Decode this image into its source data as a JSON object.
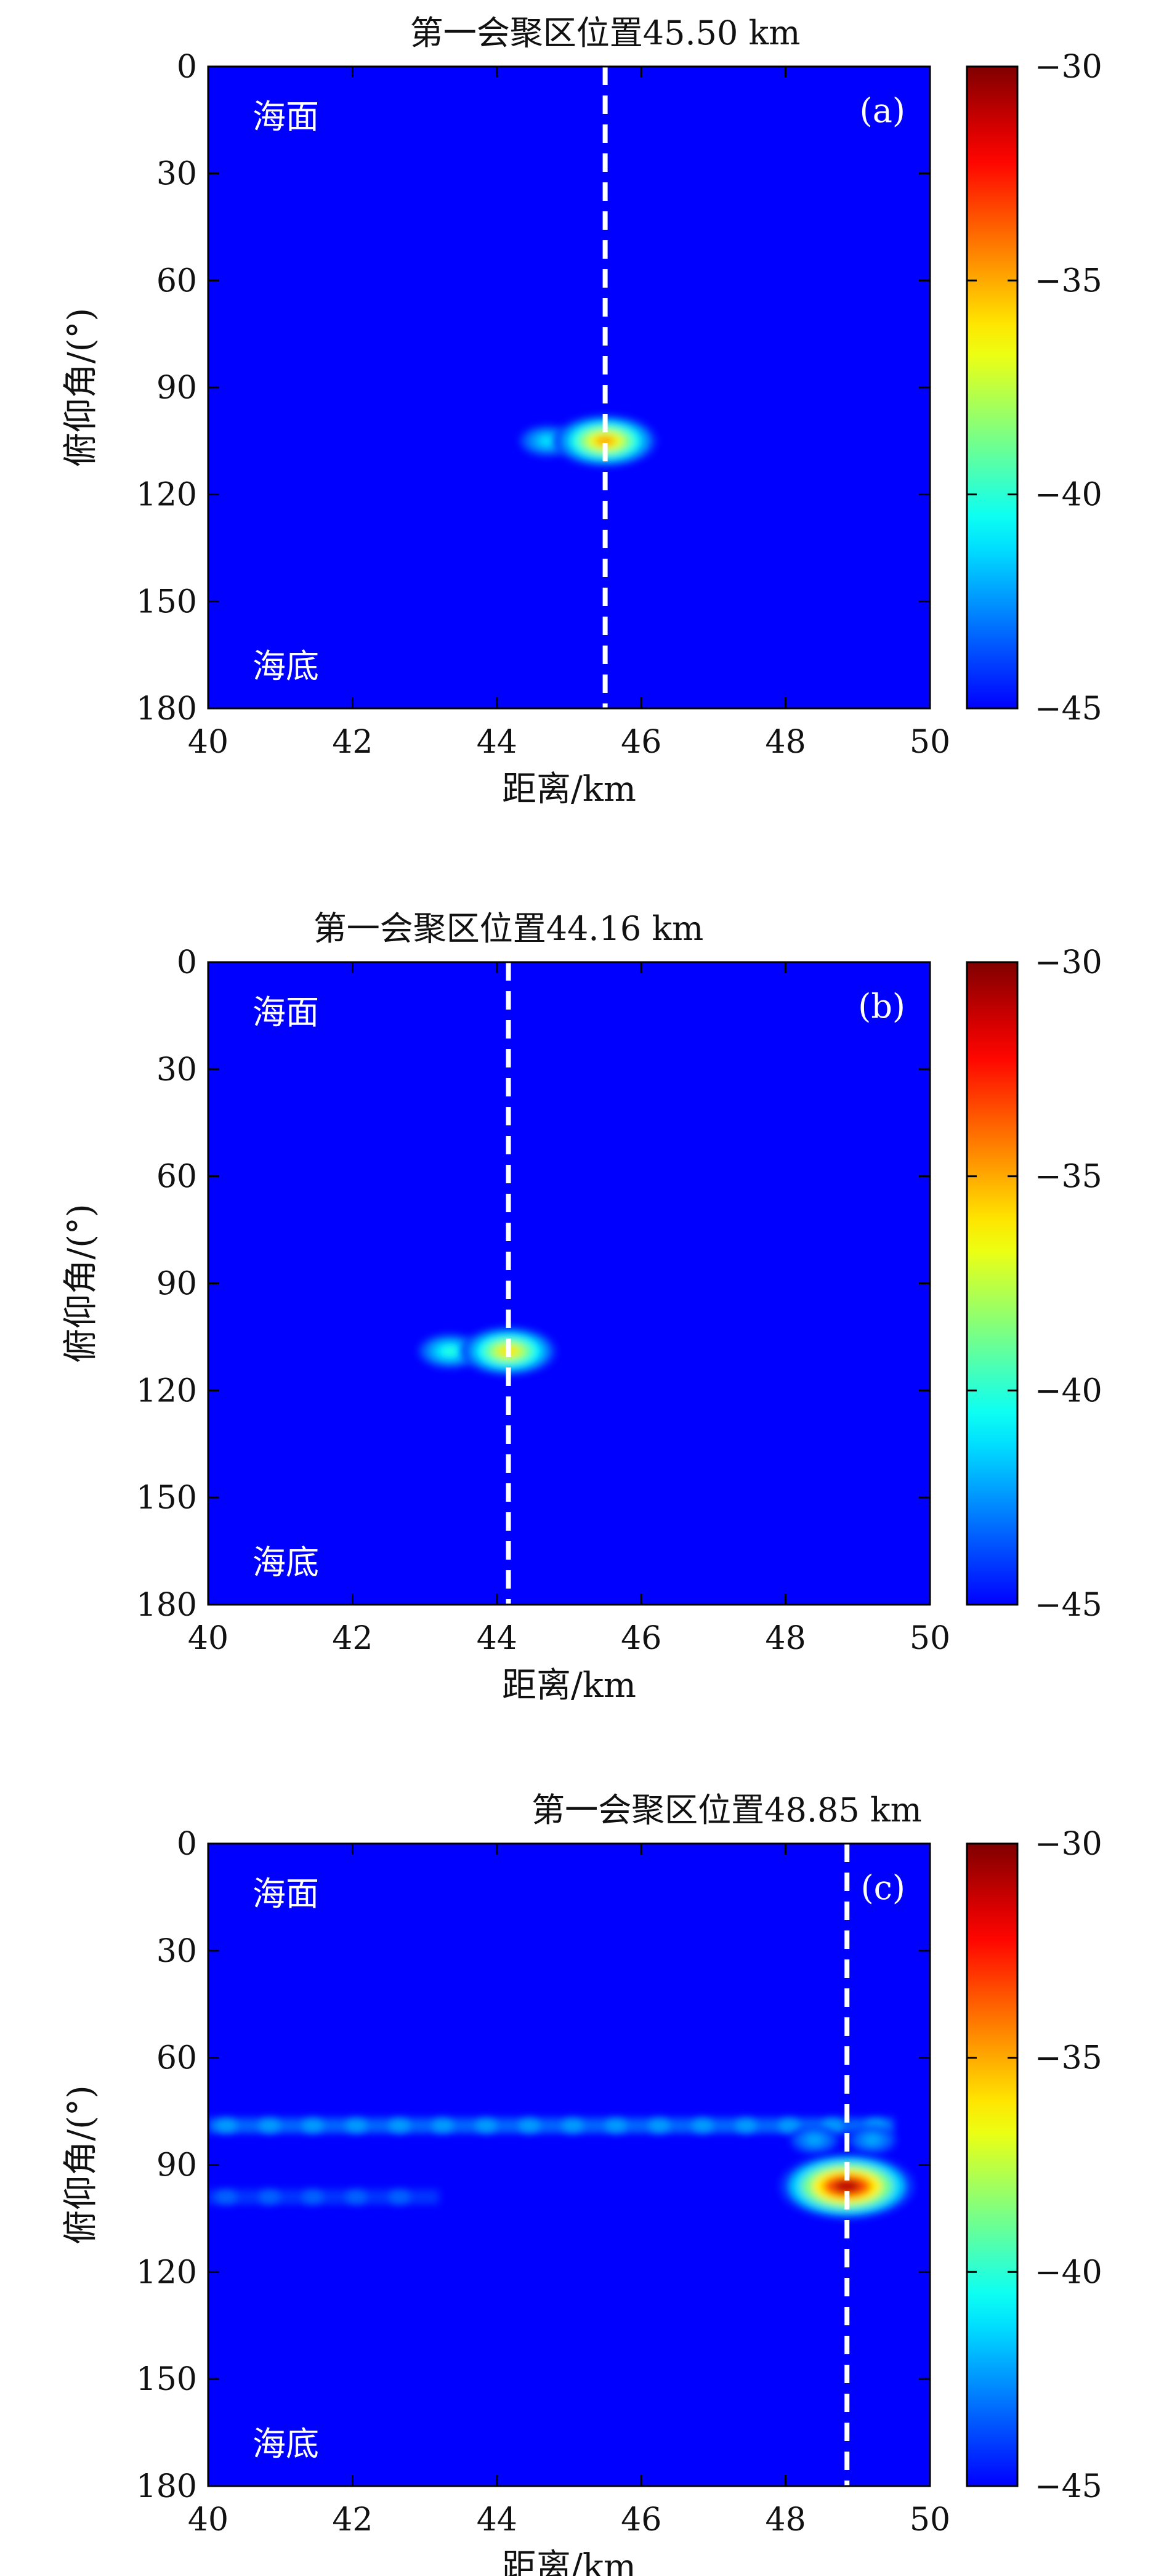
{
  "chart_data": [
    {
      "type": "heatmap",
      "panel_label": "(a)",
      "title": "第一会聚区位置45.50 km",
      "xlabel": "距离/km",
      "ylabel": "俯仰角/(°)",
      "xlim": [
        40,
        50
      ],
      "ylim": [
        0,
        180
      ],
      "x_ticks": [
        "40",
        "42",
        "44",
        "46",
        "48",
        "50"
      ],
      "y_ticks": [
        "0",
        "30",
        "60",
        "90",
        "120",
        "150",
        "180"
      ],
      "y_inverted": true,
      "top_label": "海面",
      "bottom_label": "海底",
      "colorbar": {
        "min": -45,
        "max": -30,
        "ticks": [
          "−30",
          "−35",
          "−40",
          "−45"
        ],
        "colormap": "jet"
      },
      "marker_line_x": 45.5,
      "hotspots": [
        {
          "x": 45.5,
          "y": 105,
          "value": -35
        },
        {
          "x": 44.7,
          "y": 105,
          "value": -41
        }
      ],
      "bands": []
    },
    {
      "type": "heatmap",
      "panel_label": "(b)",
      "title": "第一会聚区位置44.16 km",
      "xlabel": "距离/km",
      "ylabel": "俯仰角/(°)",
      "xlim": [
        40,
        50
      ],
      "ylim": [
        0,
        180
      ],
      "x_ticks": [
        "40",
        "42",
        "44",
        "46",
        "48",
        "50"
      ],
      "y_ticks": [
        "0",
        "30",
        "60",
        "90",
        "120",
        "150",
        "180"
      ],
      "y_inverted": true,
      "top_label": "海面",
      "bottom_label": "海底",
      "colorbar": {
        "min": -45,
        "max": -30,
        "ticks": [
          "−30",
          "−35",
          "−40",
          "−45"
        ],
        "colormap": "jet"
      },
      "marker_line_x": 44.16,
      "hotspots": [
        {
          "x": 44.16,
          "y": 109,
          "value": -36
        },
        {
          "x": 43.35,
          "y": 109,
          "value": -40
        }
      ],
      "bands": []
    },
    {
      "type": "heatmap",
      "panel_label": "(c)",
      "title": "第一会聚区位置48.85 km",
      "xlabel": "距离/km",
      "ylabel": "俯仰角/(°)",
      "xlim": [
        40,
        50
      ],
      "ylim": [
        0,
        180
      ],
      "x_ticks": [
        "40",
        "42",
        "44",
        "46",
        "48",
        "50"
      ],
      "y_ticks": [
        "0",
        "30",
        "60",
        "90",
        "120",
        "150",
        "180"
      ],
      "y_inverted": true,
      "top_label": "海面",
      "bottom_label": "海底",
      "colorbar": {
        "min": -45,
        "max": -30,
        "ticks": [
          "−30",
          "−35",
          "−40",
          "−45"
        ],
        "colormap": "jet"
      },
      "marker_line_x": 48.85,
      "hotspots": [
        {
          "x": 48.85,
          "y": 96,
          "value": -31
        },
        {
          "x": 48.4,
          "y": 83,
          "value": -42
        },
        {
          "x": 49.2,
          "y": 83,
          "value": -42
        }
      ],
      "bands": [
        {
          "y": 79,
          "x_from": 40,
          "x_to": 49.5,
          "value": -43
        },
        {
          "y": 99,
          "x_from": 40,
          "x_to": 43.2,
          "value": -44
        }
      ]
    }
  ]
}
